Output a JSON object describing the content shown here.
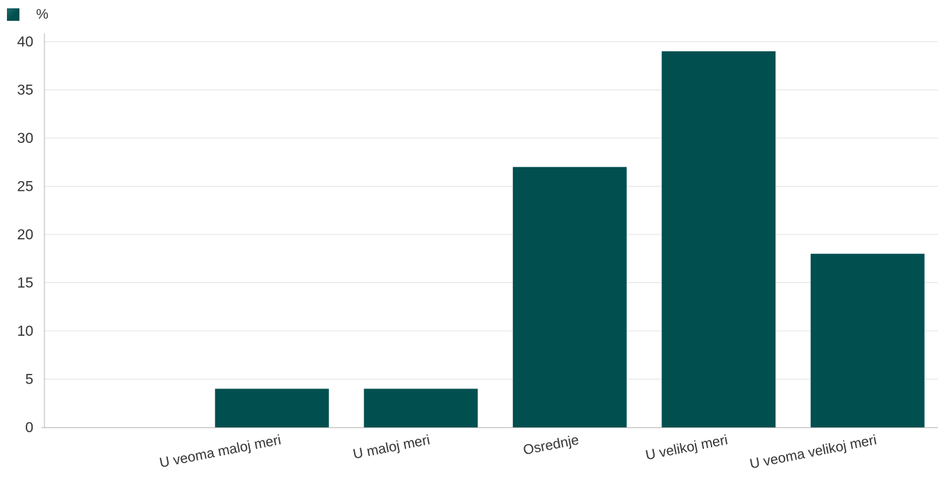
{
  "chart_data": {
    "type": "bar",
    "categories": [
      "",
      "U veoma maloj meri",
      "U maloj meri",
      "Osrednje",
      "U velikoj meri",
      "U veoma velikoj meri"
    ],
    "series": [
      {
        "name": "%",
        "values": [
          0,
          4,
          4,
          27,
          39,
          18
        ]
      }
    ],
    "xlabel": "",
    "ylabel": "",
    "ylim": [
      0,
      40
    ],
    "yticks": [
      "0",
      "5",
      "10",
      "15",
      "20",
      "25",
      "30",
      "35",
      "40"
    ],
    "grid": "horizontal",
    "legend_position": "top-left",
    "colors": {
      "bar": "#024f50",
      "grid": "#e2e2e2",
      "axis": "#b5b5b5",
      "text": "#333333"
    }
  }
}
